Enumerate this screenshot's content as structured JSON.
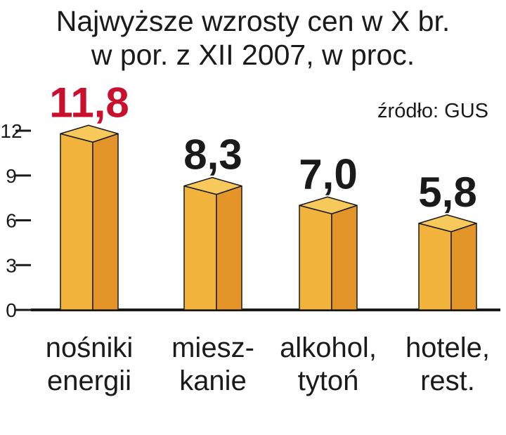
{
  "chart_data": {
    "type": "bar",
    "title": "Najwyższe wzrosty cen w X br.",
    "subtitle": "w por. z XII 2007, w proc.",
    "source": "źródło: GUS",
    "categories": [
      [
        "nośniki",
        "energii"
      ],
      [
        "miesz-",
        "kanie"
      ],
      [
        "alkohol,",
        "tytoń"
      ],
      [
        "hotele,",
        "rest."
      ]
    ],
    "values": [
      11.8,
      8.3,
      7.0,
      5.8
    ],
    "value_labels": [
      "11,8",
      "8,3",
      "7,0",
      "5,8"
    ],
    "highlight_index": 0,
    "yticks": [
      0,
      3,
      6,
      9,
      12
    ],
    "ylim": [
      0,
      12
    ],
    "grid": false,
    "colors": {
      "bar_front": "#f2b33d",
      "bar_side": "#e4952a",
      "bar_top": "#f7c85a",
      "highlight_label": "#c8102e",
      "text": "#1a1a1a"
    }
  }
}
